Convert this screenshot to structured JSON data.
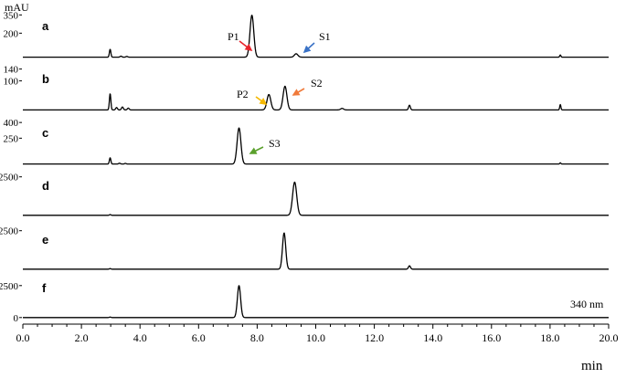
{
  "chart_data": {
    "type": "line",
    "y_unit": "mAU",
    "xlabel": "min",
    "xlim": [
      0.0,
      20.0
    ],
    "x_ticks": [
      "0.0",
      "2.0",
      "4.0",
      "6.0",
      "8.0",
      "10.0",
      "12.0",
      "14.0",
      "16.0",
      "18.0",
      "20.0"
    ],
    "wavelength_note": "340 nm",
    "panels": [
      {
        "letter": "a",
        "ylim": [
          0,
          360
        ],
        "ytick_labels": [
          "350",
          "200"
        ],
        "ytick_values": [
          350,
          200
        ],
        "baseline": 3,
        "peaks": [
          {
            "rt": 2.98,
            "height": 65,
            "sigma": 0.025
          },
          {
            "rt": 3.35,
            "height": 8,
            "sigma": 0.03
          },
          {
            "rt": 3.55,
            "height": 6,
            "sigma": 0.03
          },
          {
            "rt": 7.82,
            "height": 345,
            "sigma": 0.065
          },
          {
            "rt": 9.33,
            "height": 28,
            "sigma": 0.06
          },
          {
            "rt": 18.35,
            "height": 18,
            "sigma": 0.02
          }
        ],
        "annotations": [
          {
            "text": "P1",
            "arrow_color": "#e8232b",
            "target_rt": 7.62
          },
          {
            "text": "S1",
            "arrow_color": "#3a72c6",
            "target_rt": 9.38
          }
        ]
      },
      {
        "letter": "b",
        "ylim": [
          0,
          145
        ],
        "ytick_labels": [
          "140",
          "100"
        ],
        "ytick_values": [
          140,
          100
        ],
        "baseline": 2,
        "peaks": [
          {
            "rt": 2.98,
            "height": 55,
            "sigma": 0.025
          },
          {
            "rt": 3.2,
            "height": 8,
            "sigma": 0.03
          },
          {
            "rt": 3.4,
            "height": 10,
            "sigma": 0.03
          },
          {
            "rt": 3.6,
            "height": 6,
            "sigma": 0.03
          },
          {
            "rt": 8.4,
            "height": 52,
            "sigma": 0.065
          },
          {
            "rt": 8.95,
            "height": 80,
            "sigma": 0.065
          },
          {
            "rt": 10.9,
            "height": 5,
            "sigma": 0.05
          },
          {
            "rt": 13.2,
            "height": 16,
            "sigma": 0.03
          },
          {
            "rt": 18.35,
            "height": 18,
            "sigma": 0.02
          }
        ],
        "annotations": [
          {
            "text": "P2",
            "arrow_color": "#f5b800",
            "target_rt": 8.27
          },
          {
            "text": "S2",
            "arrow_color": "#f07a3a",
            "target_rt": 9.07
          }
        ]
      },
      {
        "letter": "c",
        "ylim": [
          0,
          410
        ],
        "ytick_labels": [
          "400",
          "250"
        ],
        "ytick_values": [
          400,
          250
        ],
        "baseline": 3,
        "peaks": [
          {
            "rt": 2.98,
            "height": 60,
            "sigma": 0.025
          },
          {
            "rt": 3.3,
            "height": 8,
            "sigma": 0.03
          },
          {
            "rt": 3.5,
            "height": 6,
            "sigma": 0.03
          },
          {
            "rt": 7.38,
            "height": 345,
            "sigma": 0.065
          },
          {
            "rt": 18.35,
            "height": 12,
            "sigma": 0.02
          }
        ],
        "annotations": [
          {
            "text": "S3",
            "arrow_color": "#5aa02c",
            "target_rt": 7.48
          }
        ]
      },
      {
        "letter": "d",
        "ylim": [
          0,
          2600
        ],
        "ytick_labels": [
          "2500"
        ],
        "ytick_values": [
          2500
        ],
        "baseline": 10,
        "peaks": [
          {
            "rt": 2.98,
            "height": 50,
            "sigma": 0.025
          },
          {
            "rt": 9.28,
            "height": 2150,
            "sigma": 0.07
          }
        ],
        "annotations": []
      },
      {
        "letter": "e",
        "ylim": [
          0,
          2600
        ],
        "ytick_labels": [
          "2500"
        ],
        "ytick_values": [
          2500
        ],
        "baseline": 10,
        "peaks": [
          {
            "rt": 2.98,
            "height": 40,
            "sigma": 0.025
          },
          {
            "rt": 8.92,
            "height": 2350,
            "sigma": 0.055
          },
          {
            "rt": 13.2,
            "height": 220,
            "sigma": 0.035
          }
        ],
        "annotations": []
      },
      {
        "letter": "f",
        "ylim": [
          -300,
          2700
        ],
        "ytick_labels": [
          "2500",
          "0"
        ],
        "ytick_values": [
          2500,
          0
        ],
        "baseline": 0,
        "peaks": [
          {
            "rt": 2.98,
            "height": 40,
            "sigma": 0.025
          },
          {
            "rt": 7.38,
            "height": 2500,
            "sigma": 0.055
          }
        ],
        "annotations": []
      }
    ]
  }
}
